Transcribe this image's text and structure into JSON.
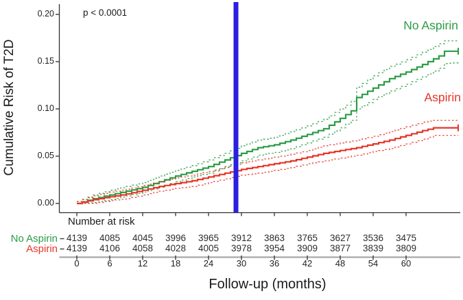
{
  "chart_data": {
    "type": "line",
    "subtype": "cumulative-incidence-step-curves-with-ci",
    "title": "",
    "annotation": "p < 0.0001",
    "xlabel": "Follow-up (months)",
    "ylabel": "Cumulative Risk of T2D",
    "xlim": [
      0,
      69.5
    ],
    "ylim": [
      0,
      0.2
    ],
    "x_ticks": [
      0,
      6,
      12,
      18,
      24,
      30,
      36,
      42,
      48,
      54,
      60
    ],
    "x_tick_labels": [
      "0",
      "6",
      "12",
      "18",
      "24",
      "30",
      "36",
      "42",
      "48",
      "54",
      "60"
    ],
    "y_ticks": [
      0.0,
      0.05,
      0.1,
      0.15,
      0.2
    ],
    "y_tick_labels": [
      "0.00",
      "0.05",
      "0.10",
      "0.15",
      "0.20"
    ],
    "grid": false,
    "legend_position": "labels-on-plot",
    "landmark_line_x": 29,
    "colors": {
      "no_aspirin": "#2a9d45",
      "aspirin": "#e53528",
      "landmark": "#2b1fe0",
      "axis": "#2f2f2f",
      "table_line": "#a8a8a8",
      "table_tick": "#3a3a3a"
    },
    "series": [
      {
        "name": "No Aspirin",
        "color": "#2a9d45",
        "t": [
          0,
          3,
          6,
          9,
          12,
          15,
          18,
          21,
          24,
          27,
          30,
          33,
          36,
          39,
          42,
          45,
          48,
          50,
          51,
          54,
          57,
          60,
          63,
          66,
          67,
          69.5
        ],
        "risk": [
          0,
          0.005,
          0.009,
          0.013,
          0.017,
          0.023,
          0.029,
          0.034,
          0.039,
          0.046,
          0.053,
          0.059,
          0.062,
          0.067,
          0.073,
          0.079,
          0.09,
          0.098,
          0.112,
          0.122,
          0.132,
          0.139,
          0.147,
          0.156,
          0.161,
          0.161
        ],
        "ci_upper": [
          0.002,
          0.009,
          0.014,
          0.018,
          0.022,
          0.029,
          0.035,
          0.04,
          0.046,
          0.053,
          0.061,
          0.067,
          0.07,
          0.076,
          0.082,
          0.089,
          0.1,
          0.108,
          0.123,
          0.135,
          0.145,
          0.152,
          0.16,
          0.169,
          0.172,
          0.172
        ],
        "ci_lower": [
          0,
          0.001,
          0.004,
          0.008,
          0.012,
          0.017,
          0.023,
          0.028,
          0.032,
          0.039,
          0.045,
          0.051,
          0.054,
          0.058,
          0.064,
          0.07,
          0.08,
          0.088,
          0.1,
          0.11,
          0.119,
          0.126,
          0.134,
          0.143,
          0.148,
          0.149
        ],
        "censor": {
          "t": 69.5,
          "risk": 0.161
        }
      },
      {
        "name": "Aspirin",
        "color": "#e53528",
        "t": [
          0,
          3,
          6,
          9,
          12,
          15,
          18,
          21,
          24,
          27,
          30,
          33,
          36,
          39,
          42,
          45,
          48,
          51,
          54,
          57,
          60,
          63,
          65,
          69.5
        ],
        "risk": [
          0,
          0.004,
          0.007,
          0.01,
          0.014,
          0.018,
          0.021,
          0.024,
          0.028,
          0.032,
          0.036,
          0.039,
          0.042,
          0.045,
          0.049,
          0.053,
          0.056,
          0.059,
          0.063,
          0.067,
          0.072,
          0.077,
          0.08,
          0.08
        ],
        "ci_upper": [
          0.002,
          0.008,
          0.012,
          0.015,
          0.019,
          0.023,
          0.027,
          0.03,
          0.034,
          0.038,
          0.043,
          0.046,
          0.049,
          0.052,
          0.056,
          0.061,
          0.064,
          0.067,
          0.071,
          0.076,
          0.081,
          0.086,
          0.088,
          0.088
        ],
        "ci_lower": [
          0,
          0.0,
          0.003,
          0.005,
          0.009,
          0.013,
          0.016,
          0.018,
          0.022,
          0.026,
          0.03,
          0.032,
          0.035,
          0.038,
          0.042,
          0.045,
          0.048,
          0.051,
          0.055,
          0.058,
          0.063,
          0.068,
          0.072,
          0.072
        ],
        "censor": {
          "t": 69.5,
          "risk": 0.08
        }
      }
    ],
    "number_at_risk": {
      "title": "Number at risk",
      "times": [
        0,
        6,
        12,
        18,
        24,
        30,
        36,
        42,
        48,
        54,
        60
      ],
      "rows": [
        {
          "label": "No Aspirin",
          "color": "#2a9d45",
          "counts": [
            "4139",
            "4085",
            "4045",
            "3996",
            "3965",
            "3912",
            "3863",
            "3765",
            "3627",
            "3536",
            "3475"
          ]
        },
        {
          "label": "Aspirin",
          "color": "#e53528",
          "counts": [
            "4139",
            "4106",
            "4058",
            "4028",
            "4005",
            "3978",
            "3954",
            "3909",
            "3877",
            "3839",
            "3809"
          ]
        }
      ]
    }
  }
}
